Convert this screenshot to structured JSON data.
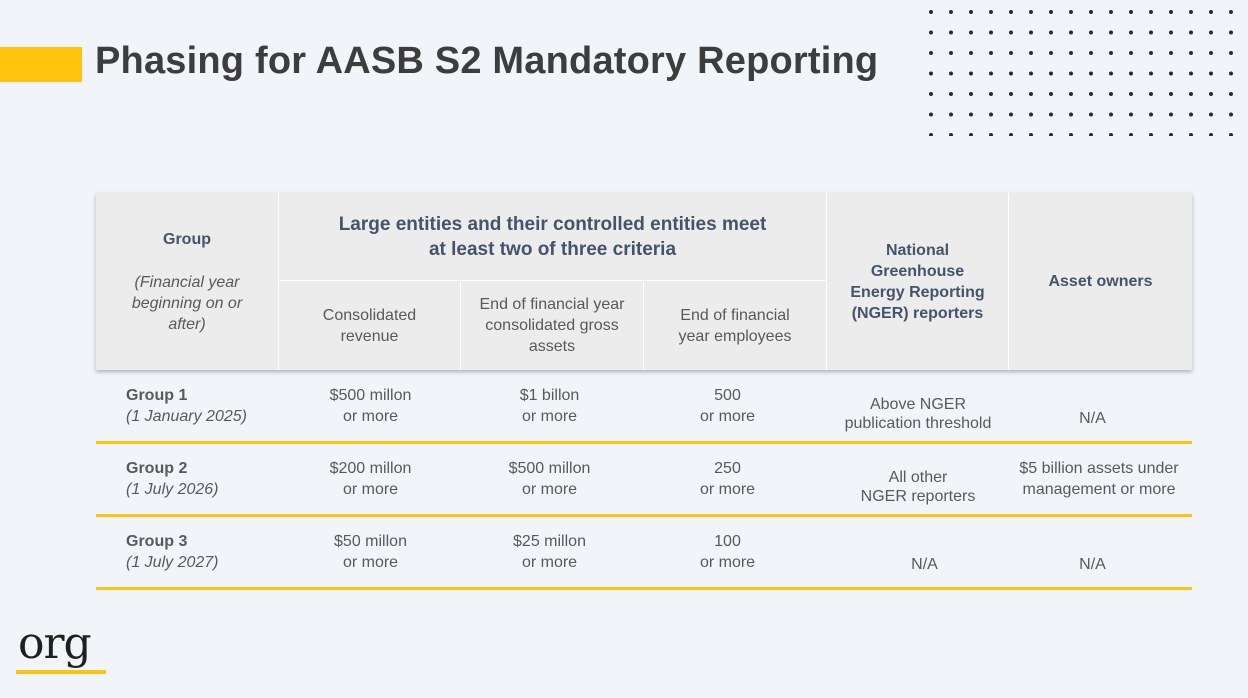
{
  "title": "Phasing for AASB S2 Mandatory Reporting",
  "colors": {
    "accent": "#ffc40c",
    "header_bg": "#ececec",
    "header_text": "#44546a",
    "background": "#f1f4f9"
  },
  "table": {
    "header": {
      "group_label": "Group",
      "group_note": "(Financial year beginning on or after)",
      "large_entities_title": "Large entities and their controlled entities meet at least two of three criteria",
      "criteria": [
        "Consolidated revenue",
        "End of financial year consolidated gross assets",
        "End of financial year employees"
      ],
      "nger_label": "National Greenhouse Energy Reporting (NGER) reporters",
      "asset_owners_label": "Asset owners"
    },
    "rows": [
      {
        "group": "Group 1",
        "date": "(1 January 2025)",
        "revenue_line1": "$500 millon",
        "revenue_line2": "or more",
        "assets_line1": "$1 billon",
        "assets_line2": "or more",
        "employees_line1": "500",
        "employees_line2": "or more",
        "nger_line1": "Above NGER",
        "nger_line2": "publication threshold",
        "asset_owners_line1": "N/A",
        "asset_owners_line2": ""
      },
      {
        "group": "Group 2",
        "date": "(1 July 2026)",
        "revenue_line1": "$200 millon",
        "revenue_line2": "or more",
        "assets_line1": "$500 millon",
        "assets_line2": "or more",
        "employees_line1": "250",
        "employees_line2": "or more",
        "nger_line1": "All other",
        "nger_line2": "NGER reporters",
        "asset_owners_line1": "$5 billion assets under",
        "asset_owners_line2": "management or more"
      },
      {
        "group": "Group 3",
        "date": "(1 July 2027)",
        "revenue_line1": "$50 millon",
        "revenue_line2": "or more",
        "assets_line1": "$25 millon",
        "assets_line2": "or more",
        "employees_line1": "100",
        "employees_line2": "or more",
        "nger_line1": "N/A",
        "nger_line2": "",
        "asset_owners_line1": "N/A",
        "asset_owners_line2": ""
      }
    ]
  },
  "logo": {
    "text": "org",
    "icon": "org-logo-icon"
  }
}
